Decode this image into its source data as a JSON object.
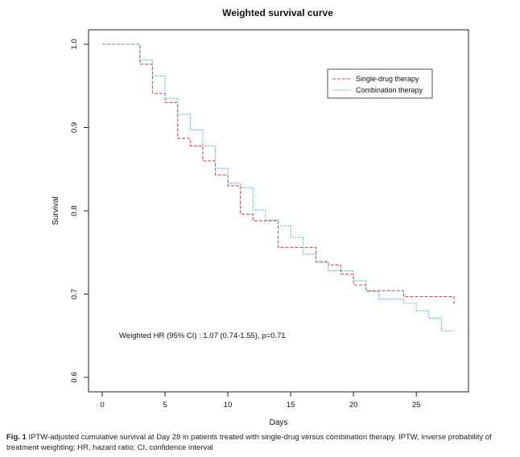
{
  "chart_data": {
    "type": "line",
    "title": "Weighted survival curve",
    "xlabel": "Days",
    "ylabel": "Survival",
    "xlim": [
      0,
      28
    ],
    "ylim": [
      0.6,
      1.0
    ],
    "xticks": [
      "0",
      "5",
      "10",
      "15",
      "20",
      "25"
    ],
    "yticks": [
      "0.6",
      "0.7",
      "0.8",
      "0.9",
      "1.0"
    ],
    "grid": false,
    "legend_position": "top-right",
    "annotation": "Weighted HR (95% CI) : 1.07 (0.74-1.55), p=0.71",
    "series": [
      {
        "name": "Single-drug therapy",
        "color": "#e8474f",
        "style": "dashed",
        "x": [
          0,
          3,
          4,
          5,
          6,
          7,
          8,
          9,
          10,
          11,
          12,
          14,
          16,
          17,
          18,
          19,
          20,
          21,
          24,
          28
        ],
        "y": [
          1.0,
          0.976,
          0.941,
          0.93,
          0.887,
          0.878,
          0.86,
          0.843,
          0.83,
          0.796,
          0.788,
          0.756,
          0.756,
          0.739,
          0.735,
          0.724,
          0.711,
          0.704,
          0.697,
          0.688
        ]
      },
      {
        "name": "Combination therapy",
        "color": "#3aa6e0",
        "style": "dotted",
        "x": [
          0,
          3,
          4,
          5,
          6,
          7,
          8,
          9,
          10,
          11,
          12,
          13,
          14,
          15,
          16,
          17,
          18,
          20,
          21,
          22,
          24,
          25,
          26,
          27,
          28
        ],
        "y": [
          1.0,
          0.981,
          0.962,
          0.935,
          0.916,
          0.897,
          0.878,
          0.851,
          0.833,
          0.828,
          0.801,
          0.789,
          0.782,
          0.768,
          0.748,
          0.738,
          0.728,
          0.716,
          0.703,
          0.694,
          0.689,
          0.68,
          0.671,
          0.656,
          0.656
        ]
      }
    ]
  },
  "caption": {
    "label": "Fig. 1",
    "text": "IPTW-adjusted cumulative survival at Day 28 in patients treated with single-drug versus combination therapy. IPTW, inverse probability of treatment weighting; HR, hazard ratio; CI, confidence interval"
  }
}
